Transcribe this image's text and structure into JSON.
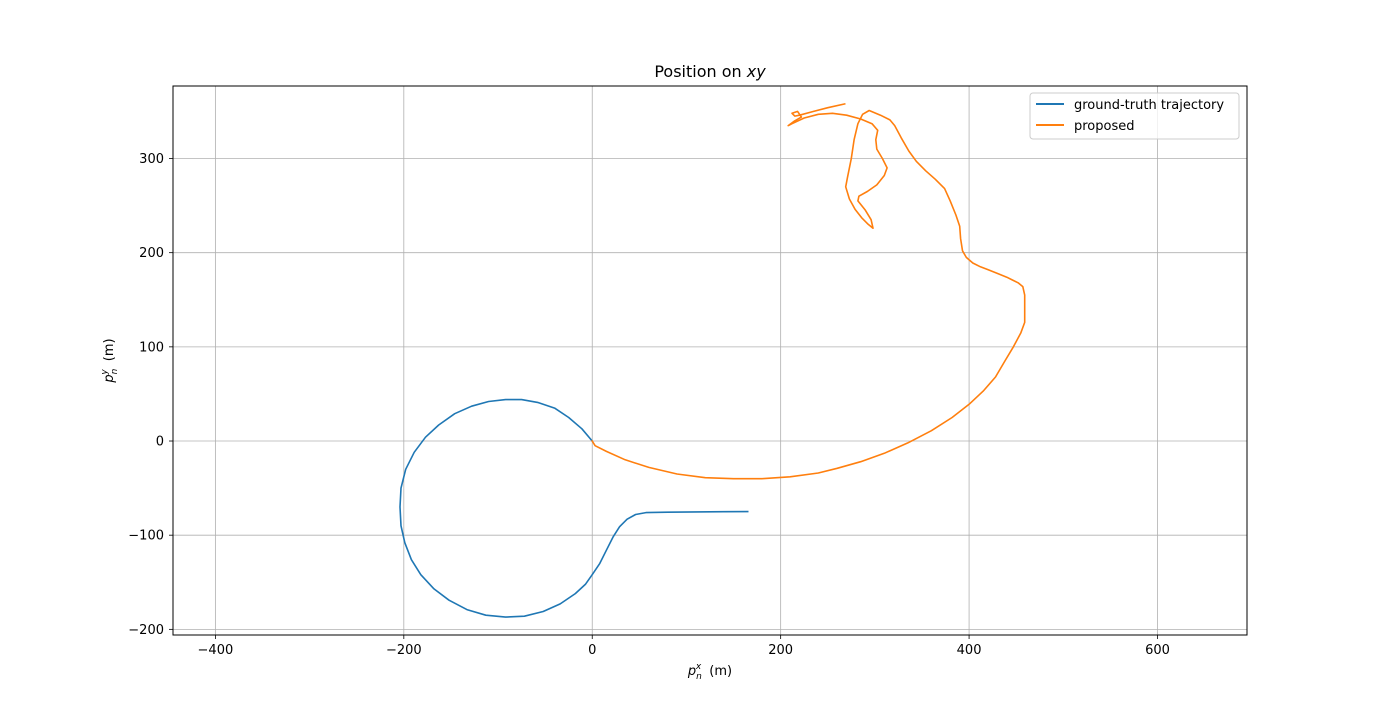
{
  "chart_data": {
    "type": "line",
    "title": "Position on xy",
    "xlabel": "p_n^x (m)",
    "ylabel": "p_n^y (m)",
    "xlim": [
      -445,
      695
    ],
    "ylim": [
      -206,
      377
    ],
    "xticks": [
      -400,
      -200,
      0,
      200,
      400,
      600
    ],
    "yticks": [
      -200,
      -100,
      0,
      100,
      200,
      300
    ],
    "xtick_labels": [
      "−400",
      "−200",
      "0",
      "200",
      "400",
      "600"
    ],
    "ytick_labels": [
      "−200",
      "−100",
      "0",
      "100",
      "200",
      "300"
    ],
    "grid": true,
    "legend_position": "top-right",
    "series": [
      {
        "name": "ground-truth trajectory",
        "color": "#1f77b4",
        "points": [
          [
            0,
            0
          ],
          [
            -11,
            13
          ],
          [
            -25,
            25
          ],
          [
            -40,
            35
          ],
          [
            -58,
            41
          ],
          [
            -75,
            44
          ],
          [
            -92,
            44
          ],
          [
            -110,
            42
          ],
          [
            -128,
            37
          ],
          [
            -146,
            29
          ],
          [
            -163,
            17
          ],
          [
            -177,
            4
          ],
          [
            -189,
            -12
          ],
          [
            -198,
            -30
          ],
          [
            -203,
            -50
          ],
          [
            -204,
            -70
          ],
          [
            -203,
            -90
          ],
          [
            -199,
            -108
          ],
          [
            -192,
            -126
          ],
          [
            -182,
            -142
          ],
          [
            -168,
            -157
          ],
          [
            -152,
            -169
          ],
          [
            -133,
            -179
          ],
          [
            -113,
            -185
          ],
          [
            -92,
            -187
          ],
          [
            -72,
            -186
          ],
          [
            -52,
            -181
          ],
          [
            -34,
            -173
          ],
          [
            -18,
            -162
          ],
          [
            -7,
            -152
          ],
          [
            0,
            -142
          ],
          [
            8,
            -130
          ],
          [
            15,
            -116
          ],
          [
            22,
            -102
          ],
          [
            29,
            -91
          ],
          [
            37,
            -83
          ],
          [
            46,
            -78
          ],
          [
            57,
            -76
          ],
          [
            80,
            -75.6
          ],
          [
            110,
            -75.3
          ],
          [
            140,
            -75.1
          ],
          [
            165,
            -75
          ]
        ]
      },
      {
        "name": "proposed",
        "color": "#ff7f0e",
        "points": [
          [
            0,
            0
          ],
          [
            3,
            -5
          ],
          [
            15,
            -11
          ],
          [
            35,
            -20
          ],
          [
            60,
            -28
          ],
          [
            90,
            -35
          ],
          [
            120,
            -39
          ],
          [
            150,
            -40
          ],
          [
            180,
            -40
          ],
          [
            210,
            -38
          ],
          [
            240,
            -34
          ],
          [
            260,
            -29
          ],
          [
            285,
            -22
          ],
          [
            310,
            -13
          ],
          [
            335,
            -2
          ],
          [
            360,
            11
          ],
          [
            382,
            25
          ],
          [
            400,
            39
          ],
          [
            415,
            53
          ],
          [
            428,
            68
          ],
          [
            438,
            85
          ],
          [
            447,
            100
          ],
          [
            455,
            115
          ],
          [
            459,
            126
          ],
          [
            459,
            140
          ],
          [
            459,
            155
          ],
          [
            457,
            164
          ],
          [
            452,
            168
          ],
          [
            446,
            171
          ],
          [
            440,
            174
          ],
          [
            430,
            178
          ],
          [
            420,
            182
          ],
          [
            412,
            185
          ],
          [
            404,
            189
          ],
          [
            397,
            195
          ],
          [
            393,
            202
          ],
          [
            391,
            215
          ],
          [
            390,
            228
          ],
          [
            386,
            240
          ],
          [
            380,
            255
          ],
          [
            374,
            268
          ],
          [
            364,
            278
          ],
          [
            354,
            287
          ],
          [
            344,
            297
          ],
          [
            336,
            308
          ],
          [
            328,
            322
          ],
          [
            321,
            335
          ],
          [
            316,
            341
          ],
          [
            306,
            346
          ],
          [
            294,
            351
          ],
          [
            287,
            347
          ],
          [
            282,
            337
          ],
          [
            278,
            320
          ],
          [
            275,
            300
          ],
          [
            271,
            280
          ],
          [
            269,
            270
          ],
          [
            273,
            257
          ],
          [
            279,
            246
          ],
          [
            286,
            237
          ],
          [
            293,
            230
          ],
          [
            298,
            226
          ],
          [
            296,
            235
          ],
          [
            290,
            245
          ],
          [
            282,
            255
          ],
          [
            283,
            260
          ],
          [
            292,
            265
          ],
          [
            302,
            272
          ],
          [
            310,
            282
          ],
          [
            313,
            290
          ],
          [
            308,
            300
          ],
          [
            302,
            310
          ],
          [
            301,
            320
          ],
          [
            303,
            330
          ],
          [
            297,
            337
          ],
          [
            285,
            342
          ],
          [
            270,
            346
          ],
          [
            255,
            348
          ],
          [
            240,
            347
          ],
          [
            225,
            343
          ],
          [
            212,
            337
          ],
          [
            208,
            335
          ],
          [
            215,
            340
          ],
          [
            222,
            344
          ],
          [
            218,
            350
          ],
          [
            212,
            348
          ],
          [
            215,
            345
          ],
          [
            220,
            346
          ],
          [
            235,
            350
          ],
          [
            250,
            354
          ],
          [
            268,
            358
          ]
        ]
      }
    ]
  }
}
